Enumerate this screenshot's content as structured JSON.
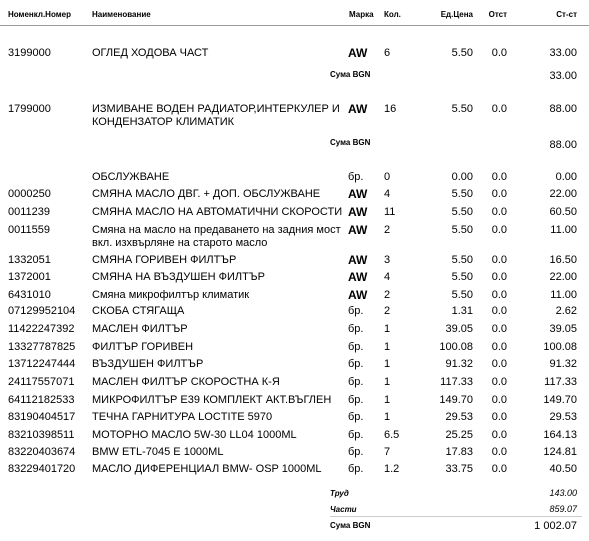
{
  "header": {
    "code": "Номенкл.Номер",
    "name": "Наименование",
    "brand": "Марка",
    "qty": "Кол.",
    "price": "Ед.Цена",
    "disc": "Отст",
    "total": "Ст-ст"
  },
  "groups": [
    {
      "rows": [
        {
          "code": "3199000",
          "name": "ОГЛЕД ХОДОВА ЧАСТ",
          "brand": "AW",
          "qty": "6",
          "price": "5.50",
          "disc": "0.0",
          "total": "33.00"
        }
      ],
      "sum_label": "Сума BGN",
      "sum": "33.00"
    },
    {
      "rows": [
        {
          "code": "1799000",
          "name": "ИЗМИВАНЕ ВОДЕН РАДИАТОР,ИНТЕРКУЛЕР И КОНДЕНЗАТОР КЛИМАТИК",
          "brand": "AW",
          "qty": "16",
          "price": "5.50",
          "disc": "0.0",
          "total": "88.00"
        }
      ],
      "sum_label": "Сума BGN",
      "sum": "88.00"
    }
  ],
  "rows": [
    {
      "name": "ОБСЛУЖВАНЕ",
      "brand": "бр.",
      "qty": "0",
      "price": "0.00",
      "disc": "0.0",
      "total": "0.00"
    },
    {
      "code": "0000250",
      "name": "СМЯНА МАСЛО ДВГ. + ДОП. ОБСЛУЖВАНЕ",
      "brand": "AW",
      "qty": "4",
      "price": "5.50",
      "disc": "0.0",
      "total": "22.00"
    },
    {
      "code": "0011239",
      "name": "СМЯНА МАСЛО НА АВТОМАТИЧНИ СКОРОСТИ",
      "brand": "AW",
      "qty": "11",
      "price": "5.50",
      "disc": "0.0",
      "total": "60.50"
    },
    {
      "code": "0011559",
      "name": "Смяна на масло на предаването на задния мост вкл. изхвърляне на старото масло",
      "brand": "AW",
      "qty": "2",
      "price": "5.50",
      "disc": "0.0",
      "total": "11.00"
    },
    {
      "code": "1332051",
      "name": "СМЯНА ГОРИВЕН ФИЛТЪР",
      "brand": "AW",
      "qty": "3",
      "price": "5.50",
      "disc": "0.0",
      "total": "16.50"
    },
    {
      "code": "1372001",
      "name": "СМЯНА НА ВЪЗДУШЕН ФИЛТЪР",
      "brand": "AW",
      "qty": "4",
      "price": "5.50",
      "disc": "0.0",
      "total": "22.00"
    },
    {
      "code": "6431010",
      "name": "Смяна микрофилтър климатик",
      "brand": "AW",
      "qty": "2",
      "price": "5.50",
      "disc": "0.0",
      "total": "11.00"
    },
    {
      "code": "07129952104",
      "name": "СКОБА  СТЯГАЩА",
      "brand": "бр.",
      "qty": "2",
      "price": "1.31",
      "disc": "0.0",
      "total": "2.62"
    },
    {
      "code": "11422247392",
      "name": "МАСЛЕН ФИЛТЪР",
      "brand": "бр.",
      "qty": "1",
      "price": "39.05",
      "disc": "0.0",
      "total": "39.05"
    },
    {
      "code": "13327787825",
      "name": "ФИЛТЪР ГОРИВЕН",
      "brand": "бр.",
      "qty": "1",
      "price": "100.08",
      "disc": "0.0",
      "total": "100.08"
    },
    {
      "code": "13712247444",
      "name": "ВЪЗДУШЕН ФИЛТЪР",
      "brand": "бр.",
      "qty": "1",
      "price": "91.32",
      "disc": "0.0",
      "total": "91.32"
    },
    {
      "code": "24117557071",
      "name": "МАСЛЕН  ФИЛТЪР  СКОРОСТНА К-Я",
      "brand": "бр.",
      "qty": "1",
      "price": "117.33",
      "disc": "0.0",
      "total": "117.33"
    },
    {
      "code": "64112182533",
      "name": "МИКРОФИЛТЪР Е39 КОМПЛЕКТ АКТ.ВЪГЛЕН",
      "brand": "бр.",
      "qty": "1",
      "price": "149.70",
      "disc": "0.0",
      "total": "149.70"
    },
    {
      "code": "83190404517",
      "name": "ТЕЧНА ГАРНИТУРА LOCTITE 5970",
      "brand": "бр.",
      "qty": "1",
      "price": "29.53",
      "disc": "0.0",
      "total": "29.53"
    },
    {
      "code": "83210398511",
      "name": "МОТОРНО МАСЛО  5W-30 LL04 1000ML",
      "brand": "бр.",
      "qty": "6.5",
      "price": "25.25",
      "disc": "0.0",
      "total": "164.13"
    },
    {
      "code": "83220403674",
      "name": "BMW  ETL-7045 E  1000ML",
      "brand": "бр.",
      "qty": "7",
      "price": "17.83",
      "disc": "0.0",
      "total": "124.81"
    },
    {
      "code": "83229401720",
      "name": "МАСЛО ДИФЕРЕНЦИАЛ  BMW- OSP 1000ML",
      "brand": "бр.",
      "qty": "1.2",
      "price": "33.75",
      "disc": "0.0",
      "total": "40.50"
    }
  ],
  "summary": {
    "labor_label": "Труд",
    "labor": "143.00",
    "parts_label": "Части",
    "parts": "859.07",
    "total_label": "Сума BGN",
    "total": "1 002.07"
  }
}
